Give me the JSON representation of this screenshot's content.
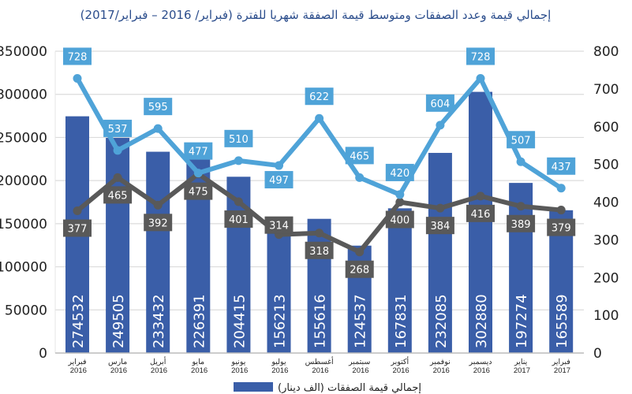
{
  "chart_data": {
    "type": "bar+line",
    "title": "إجمالي قيمة وعدد الصفقات ومتوسط قيمة الصفقة شهريا للفترة (فبراير/ 2016 – فبراير/2017)",
    "categories": [
      "فبراير 2016",
      "مارس 2016",
      "أبريل 2016",
      "مايو 2016",
      "يونيو 2016",
      "يوليو 2016",
      "أغسطس 2016",
      "سبتمبر 2016",
      "أكتوبر 2016",
      "نوفمبر 2016",
      "ديسمبر 2016",
      "يناير 2017",
      "فبراير 2017"
    ],
    "series": [
      {
        "name": "إجمالي قيمة الصفقات (الف دينار)",
        "type": "bar",
        "axis": "left",
        "color": "#3a5ea8",
        "values": [
          274532,
          249505,
          233432,
          226391,
          204415,
          156213,
          155616,
          124537,
          167831,
          232085,
          302880,
          197274,
          165589
        ]
      },
      {
        "type": "line",
        "axis": "right",
        "color": "#4fa3d8",
        "values": [
          728,
          537,
          595,
          477,
          510,
          497,
          622,
          465,
          420,
          604,
          728,
          507,
          437
        ]
      },
      {
        "type": "line",
        "axis": "right",
        "color": "#595959",
        "values": [
          377,
          465,
          392,
          475,
          401,
          314,
          318,
          268,
          400,
          384,
          416,
          389,
          379
        ]
      }
    ],
    "left_axis": {
      "min": 0,
      "max": 350000,
      "ticks": [
        "0",
        "50000",
        "100000",
        "150000",
        "200000",
        "250000",
        "300000",
        "350000"
      ]
    },
    "right_axis": {
      "min": 0,
      "max": 800,
      "ticks": [
        "0",
        "100",
        "200",
        "300",
        "400",
        "500",
        "600",
        "700",
        "800"
      ]
    },
    "grid": true,
    "legend_position": "bottom"
  }
}
